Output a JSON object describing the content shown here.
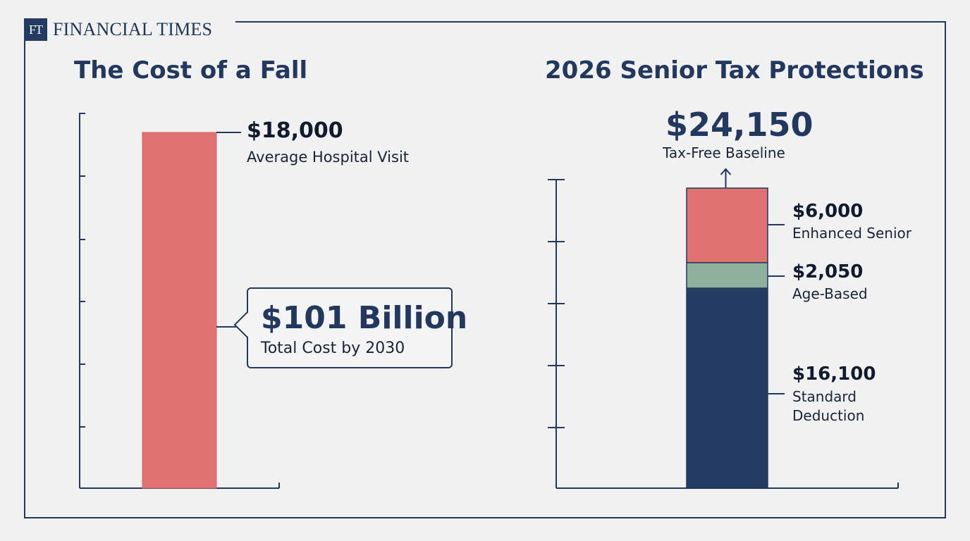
{
  "brand": {
    "mark": "FT",
    "name": "FINANCIAL TIMES"
  },
  "colors": {
    "navy": "#243b63",
    "coral": "#e07272",
    "sage": "#8fb09a"
  },
  "chart_data": [
    {
      "type": "bar",
      "title": "The Cost of a Fall",
      "series": [
        {
          "name": "",
          "values": [
            18000
          ]
        }
      ],
      "annotations": [
        {
          "value": "$18,000",
          "label": "Average Hospital Visit"
        },
        {
          "value": "$101 Billion",
          "label": "Total Cost by 2030"
        }
      ],
      "grid": false
    },
    {
      "type": "bar",
      "stacked": true,
      "title": "2026 Senior Tax Protections",
      "total": {
        "value": "$24,150",
        "label": "Tax-Free Baseline"
      },
      "segments": [
        {
          "name": "Standard Deduction",
          "value": 16100,
          "display": "$16,100",
          "label_lines": [
            "Standard",
            "Deduction"
          ],
          "color": "#243b63"
        },
        {
          "name": "Age-Based",
          "value": 2050,
          "display": "$2,050",
          "label_lines": [
            "Age-Based"
          ],
          "color": "#8fb09a"
        },
        {
          "name": "Enhanced Senior",
          "value": 6000,
          "display": "$6,000",
          "label_lines": [
            "Enhanced Senior"
          ],
          "color": "#e07272"
        }
      ],
      "grid": false
    }
  ]
}
